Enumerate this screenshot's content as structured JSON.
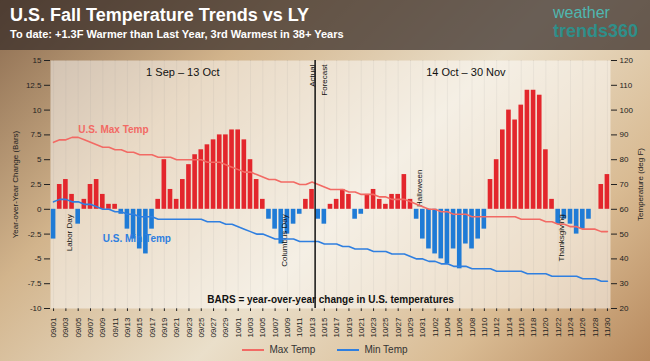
{
  "chart_data": {
    "type": "bar",
    "title": "U.S. Fall Temperature Trends vs LY",
    "subtitle": "To date: +1.3F Warmer than Last Year, 3rd Warmest in 38+ Years",
    "logo": [
      "weather",
      "trends360"
    ],
    "categories": [
      "09/01",
      null,
      "09/03",
      null,
      "09/05",
      null,
      "09/07",
      null,
      "09/09",
      null,
      "09/11",
      null,
      "09/13",
      null,
      "09/15",
      null,
      "09/17",
      null,
      "09/19",
      null,
      "09/21",
      null,
      "09/23",
      null,
      "09/25",
      null,
      "09/27",
      null,
      "09/29",
      null,
      "10/01",
      null,
      "10/03",
      null,
      "10/05",
      null,
      "10/07",
      null,
      "10/09",
      null,
      "10/11",
      null,
      "10/13",
      null,
      "10/15",
      null,
      "10/17",
      null,
      "10/19",
      null,
      "10/21",
      null,
      "10/23",
      null,
      "10/25",
      null,
      "10/27",
      null,
      "10/29",
      null,
      "10/31",
      null,
      "11/02",
      null,
      "11/04",
      null,
      "11/06",
      null,
      "11/08",
      null,
      "11/10",
      null,
      "11/12",
      null,
      "11/14",
      null,
      "11/16",
      null,
      "11/18",
      null,
      "11/20",
      null,
      "11/22",
      null,
      "11/24",
      null,
      "11/26",
      null,
      "11/28",
      null,
      "11/30"
    ],
    "values": [
      -3,
      2.5,
      3,
      1.5,
      -1.5,
      1,
      2.5,
      3,
      1.5,
      0.5,
      0.5,
      -0.5,
      -2,
      -3,
      -4,
      -4.5,
      -2,
      1,
      5,
      2,
      1,
      3,
      4.5,
      5.5,
      6,
      6.5,
      7,
      7.5,
      7.5,
      8,
      8,
      7,
      5,
      3,
      1,
      -1,
      -2,
      -3.5,
      -2.5,
      -1.5,
      -0.5,
      1,
      2,
      -1,
      -1.5,
      0.5,
      1,
      2,
      1.5,
      -1,
      -0.5,
      1.5,
      2,
      1,
      0.5,
      1.5,
      1.5,
      3.5,
      1,
      -1,
      -3,
      -4,
      -4.5,
      -5,
      -5.5,
      -4,
      -6,
      -3.5,
      -4,
      -3,
      -2,
      3,
      5,
      8,
      10,
      9,
      10.5,
      12,
      12,
      11.5,
      6,
      1,
      -1.5,
      -1,
      -1.5,
      -2.5,
      -2,
      -1,
      0,
      2.5,
      3.5
    ],
    "colors": [
      "#1f7bd6",
      "#e3262c",
      "#e3262c",
      "#e3262c",
      "#1f7bd6",
      "#e3262c",
      "#e3262c",
      "#e3262c",
      "#e3262c",
      "#e3262c",
      "#e3262c",
      "#1f7bd6",
      "#1f7bd6",
      "#1f7bd6",
      "#1f7bd6",
      "#1f7bd6",
      "#1f7bd6",
      "#e3262c",
      "#e3262c",
      "#e3262c",
      "#e3262c",
      "#e3262c",
      "#e3262c",
      "#e3262c",
      "#e3262c",
      "#e3262c",
      "#e3262c",
      "#e3262c",
      "#e3262c",
      "#e3262c",
      "#e3262c",
      "#e3262c",
      "#e3262c",
      "#e3262c",
      "#e3262c",
      "#1f7bd6",
      "#1f7bd6",
      "#1f7bd6",
      "#1f7bd6",
      "#1f7bd6",
      "#1f7bd6",
      "#e3262c",
      "#e3262c",
      "#1f7bd6",
      "#1f7bd6",
      "#e3262c",
      "#e3262c",
      "#e3262c",
      "#e3262c",
      "#1f7bd6",
      "#1f7bd6",
      "#e3262c",
      "#e3262c",
      "#e3262c",
      "#e3262c",
      "#e3262c",
      "#e3262c",
      "#e3262c",
      "#e3262c",
      "#1f7bd6",
      "#1f7bd6",
      "#1f7bd6",
      "#1f7bd6",
      "#1f7bd6",
      "#1f7bd6",
      "#1f7bd6",
      "#1f7bd6",
      "#1f7bd6",
      "#1f7bd6",
      "#1f7bd6",
      "#1f7bd6",
      "#e3262c",
      "#e3262c",
      "#e3262c",
      "#e3262c",
      "#e3262c",
      "#e3262c",
      "#e3262c",
      "#e3262c",
      "#e3262c",
      "#e3262c",
      "#e3262c",
      "#1f7bd6",
      "#1f7bd6",
      "#1f7bd6",
      "#1f7bd6",
      "#1f7bd6",
      "#1f7bd6",
      "#e3262c",
      "#e3262c",
      "#e3262c"
    ],
    "ylabel": "Year-over-Year Change (Bars)",
    "ylim": [
      -10,
      15
    ],
    "yticks": [
      -10,
      -7.5,
      -5,
      -2.5,
      0,
      2.5,
      5,
      7.5,
      10,
      12.5,
      15
    ],
    "y2label": "Temperature (deg F)",
    "y2lim": [
      20,
      120
    ],
    "y2ticks": [
      20,
      30,
      40,
      50,
      60,
      70,
      80,
      90,
      100,
      110,
      120
    ],
    "grid": true,
    "legend": "bottom",
    "series": [
      {
        "name": "Max Temp",
        "type": "line",
        "axis": "y2",
        "color": "#f26a64",
        "label": {
          "text": "U.S. Max Temp",
          "x": 4,
          "y": 92
        },
        "values": [
          87,
          88,
          88,
          89,
          89,
          88,
          87,
          86,
          85,
          85,
          84,
          84,
          83,
          83,
          82,
          82,
          82,
          81,
          81,
          81,
          80,
          80,
          80,
          80,
          80,
          79,
          79,
          79,
          78,
          77,
          76,
          75,
          75,
          74,
          73,
          72,
          72,
          71,
          71,
          71,
          70,
          70,
          71,
          70,
          69,
          68,
          68,
          68,
          67,
          67,
          66,
          66,
          66,
          65,
          65,
          64,
          64,
          64,
          63,
          62,
          61,
          60,
          60,
          59,
          59,
          58,
          58,
          58,
          57,
          57,
          57,
          57,
          57,
          57,
          57,
          57,
          56,
          56,
          56,
          56,
          55,
          55,
          54,
          54,
          53,
          53,
          52,
          52,
          52,
          51,
          51
        ]
      },
      {
        "name": "Min Temp",
        "type": "line",
        "axis": "y2",
        "color": "#2f7fe0",
        "label": {
          "text": "U.S. Min Temp",
          "x": 8,
          "y": 48
        },
        "values": [
          63,
          64,
          64,
          63,
          63,
          62,
          62,
          61,
          60,
          60,
          59,
          59,
          58,
          58,
          57,
          57,
          57,
          56,
          56,
          56,
          56,
          56,
          56,
          56,
          56,
          55,
          55,
          55,
          54,
          54,
          53,
          52,
          51,
          50,
          50,
          49,
          48,
          48,
          48,
          48,
          47,
          47,
          47,
          47,
          46,
          46,
          46,
          45,
          45,
          44,
          44,
          44,
          43,
          43,
          43,
          42,
          42,
          42,
          41,
          40,
          40,
          39,
          39,
          38,
          38,
          37,
          37,
          37,
          36,
          36,
          36,
          36,
          35,
          35,
          35,
          35,
          35,
          34,
          34,
          34,
          34,
          33,
          33,
          33,
          33,
          33,
          32,
          32,
          32,
          31,
          31
        ]
      }
    ],
    "annotations": [
      {
        "text": "Labor Day",
        "x": 3,
        "y": -0.5
      },
      {
        "text": "Columbus Day",
        "x": 38,
        "y": -0.5
      },
      {
        "text": "Halloween",
        "x": 60,
        "y": 4
      },
      {
        "text": "Thanksgiving",
        "x": 83,
        "y": -0.5
      }
    ],
    "periods": [
      "1 Sep – 13 Oct",
      "14 Oct – 30 Nov"
    ],
    "forecast_start": 43,
    "divider_labels": [
      "Actual",
      "Forecast"
    ],
    "note": "BARS = year-over-year change in U.S. temperatures"
  }
}
